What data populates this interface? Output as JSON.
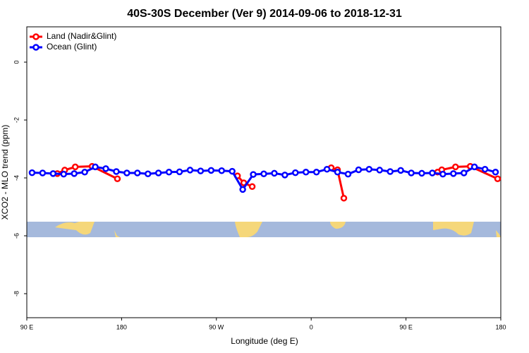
{
  "chart_data": {
    "type": "line",
    "title": "40S-30S December (Ver 9)   2014-09-06 to 2018-12-31",
    "x_label": "Longitude (deg E)",
    "y_label": "XCO2 - MLO trend (ppm)",
    "xlim": [
      90,
      540
    ],
    "xticks": [
      {
        "value": 90,
        "label": "90 E"
      },
      180,
      {
        "value": 270,
        "label": "90 W"
      },
      {
        "value": 360,
        "label": "0"
      },
      {
        "value": 450,
        "label": "90 E"
      },
      {
        "value": 540,
        "label": "180"
      }
    ],
    "ylim": [
      -8.83,
      1.22
    ],
    "yticks": [
      0,
      -2,
      -4,
      -6,
      -8
    ],
    "legend": "top-left",
    "series": [
      {
        "name": "Land (Nadir&Glint)",
        "color": "#ff0000",
        "x": [
          119,
          126,
          136,
          152,
          176,
          230,
          290,
          296,
          304,
          340,
          379,
          385,
          391,
          440,
          480,
          484,
          497,
          511,
          537
        ],
        "values": [
          -3.85,
          -3.73,
          -3.62,
          -3.6,
          -4.03,
          null,
          -3.93,
          -4.17,
          -4.3,
          null,
          -3.65,
          -3.72,
          -4.7,
          null,
          -3.8,
          -3.72,
          -3.62,
          -3.6,
          -4.03
        ]
      },
      {
        "name": "Ocean (Glint)",
        "color": "#0000ff",
        "x": [
          95,
          105,
          115,
          125,
          135,
          145,
          155,
          165,
          175,
          185,
          195,
          205,
          215,
          225,
          235,
          245,
          255,
          265,
          275,
          285,
          295,
          305,
          315,
          325,
          335,
          345,
          355,
          365,
          375,
          385,
          395,
          405,
          415,
          425,
          435,
          445,
          455,
          465,
          475,
          485,
          495,
          505,
          515,
          525,
          535
        ],
        "values": [
          -3.82,
          -3.83,
          -3.85,
          -3.87,
          -3.85,
          -3.8,
          -3.62,
          -3.68,
          -3.78,
          -3.83,
          -3.83,
          -3.86,
          -3.83,
          -3.8,
          -3.79,
          -3.73,
          -3.76,
          -3.74,
          -3.75,
          -3.77,
          -4.4,
          -3.88,
          -3.86,
          -3.84,
          -3.9,
          -3.82,
          -3.8,
          -3.8,
          -3.7,
          -3.8,
          -3.87,
          -3.72,
          -3.7,
          -3.73,
          -3.78,
          -3.74,
          -3.83,
          -3.84,
          -3.83,
          -3.87,
          -3.85,
          -3.83,
          -3.62,
          -3.7,
          -3.8
        ]
      }
    ]
  }
}
